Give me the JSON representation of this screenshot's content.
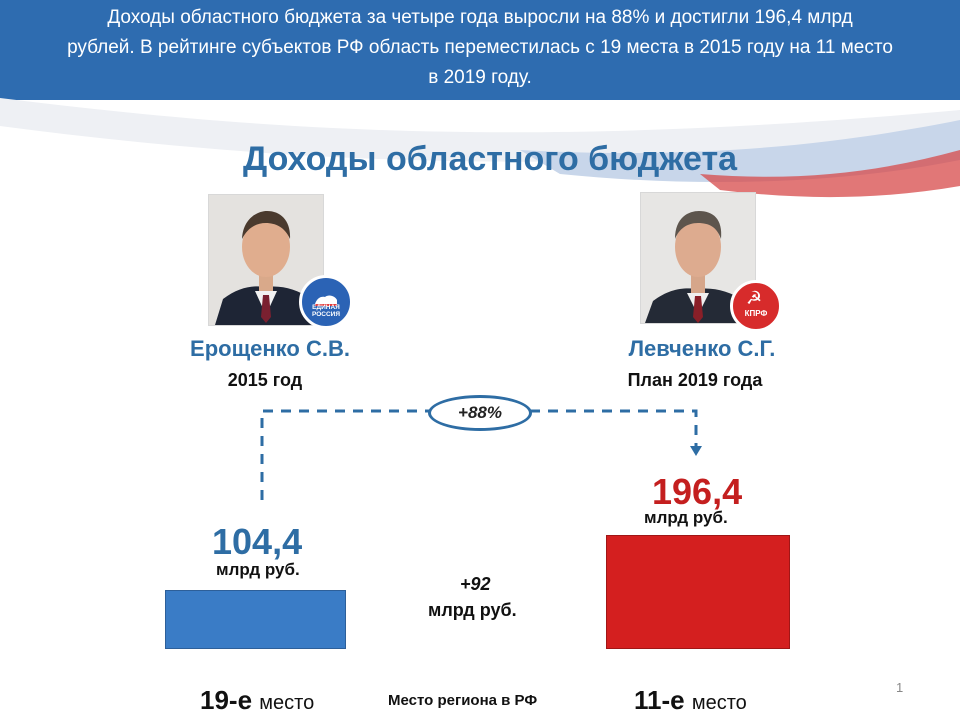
{
  "header": {
    "line1": "Доходы областного бюджета за четыре года выросли на 88% и достигли 196,4 млрд",
    "line2": "рублей. В рейтинге субъектов РФ область переместилась с 19 места в 2015 году на 11 место",
    "line3": "в 2019 году."
  },
  "slide_title": "Доходы областного бюджета",
  "left": {
    "name": "Ерощенко С.В.",
    "period": "2015 год",
    "value": "104,4",
    "unit": "млрд руб.",
    "rank_number": "19-е",
    "rank_word": "место",
    "party_badge": "ЕДИНАЯ РОССИЯ",
    "party_icon": "bear-emblem-icon"
  },
  "right": {
    "name": "Левченко С.Г.",
    "period": "План 2019 года",
    "value": "196,4",
    "unit": "млрд руб.",
    "rank_number": "11-е",
    "rank_word": "место",
    "party_badge": "КПРФ",
    "party_icon": "hammer-sickle-icon"
  },
  "growth_label": "+88%",
  "difference": {
    "value": "+92",
    "unit": "млрд руб."
  },
  "rank_caption": "Место региона в РФ",
  "page_number": "1",
  "colors": {
    "banner": "#2e6cb0",
    "title_blue": "#2e6da4",
    "bar_2015": "#3a7cc6",
    "bar_2019": "#d41f1f",
    "value_2019": "#c41f1f"
  },
  "chart_data": {
    "type": "bar",
    "categories": [
      "2015 год",
      "План 2019 года"
    ],
    "values": [
      104.4,
      196.4
    ],
    "ylabel": "млрд руб.",
    "title": "Доходы областного бюджета"
  }
}
